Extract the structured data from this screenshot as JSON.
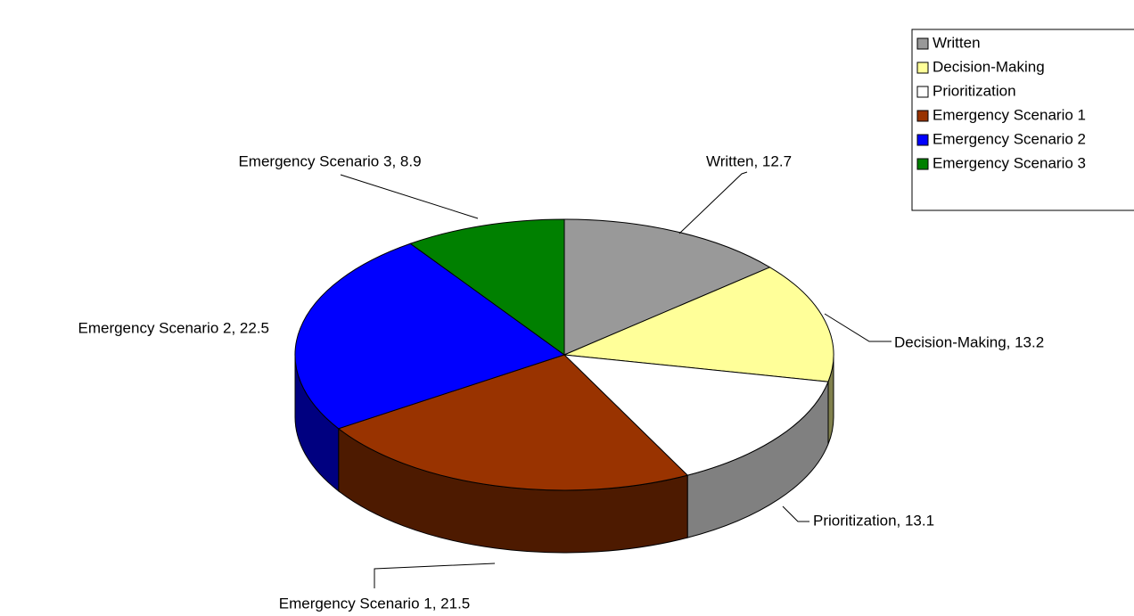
{
  "chart_data": {
    "type": "pie3d",
    "categories": [
      "Written",
      "Decision-Making",
      "Prioritization",
      "Emergency Scenario 1",
      "Emergency Scenario 2",
      "Emergency Scenario 3"
    ],
    "values": [
      12.7,
      13.2,
      13.1,
      21.5,
      22.5,
      8.9
    ],
    "value_labels": [
      "Written, 12.7",
      "Decision-Making, 13.2",
      "Prioritization, 13.1",
      "Emergency Scenario 1, 21.5",
      "Emergency Scenario 2, 22.5",
      "Emergency Scenario 3, 8.9"
    ],
    "colors": [
      "#999999",
      "#FFFF99",
      "#FFFFFF",
      "#993300",
      "#0000FF",
      "#008000"
    ],
    "legend": "top-right"
  }
}
